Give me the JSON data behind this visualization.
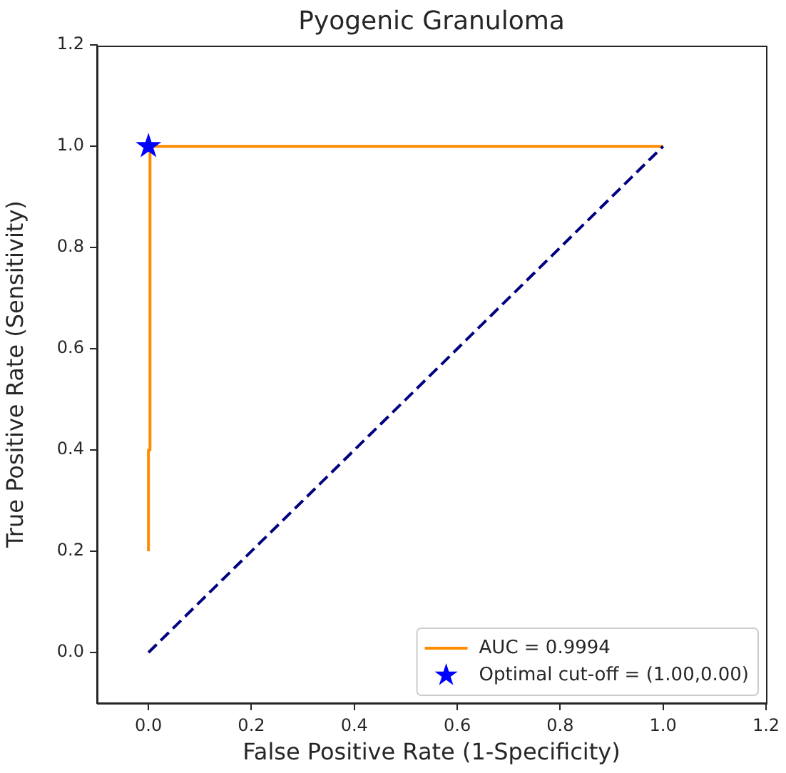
{
  "chart_data": {
    "type": "line",
    "title": "Pyogenic Granuloma",
    "xlabel": "False Positive Rate (1-Specificity)",
    "ylabel": "True Positive Rate (Sensitivity)",
    "series": [
      {
        "name": "AUC = 0.9994",
        "color": "#ff8c00",
        "x": [
          0,
          0,
          0.003,
          0.003,
          1
        ],
        "values": [
          0.2,
          0.4,
          0.4,
          1,
          1
        ],
        "marker": "none",
        "line_style": "solid"
      },
      {
        "color": "#000080",
        "x": [
          0,
          1
        ],
        "values": [
          0,
          1
        ],
        "marker": "none",
        "line_style": "dashed"
      },
      {
        "name": "Optimal cut-off = (1.00,0.00)",
        "type": "scatter",
        "color": "#0000ff",
        "x": [
          0
        ],
        "values": [
          1
        ],
        "marker": "star"
      }
    ],
    "xlim": [
      -0.1,
      1.2
    ],
    "xticks": [
      {
        "value": 0,
        "label": "0.0"
      },
      0.2,
      0.4,
      0.6,
      0.8,
      {
        "value": 1,
        "label": "1.0"
      },
      1.2
    ],
    "ylim": [
      -0.1,
      1.2
    ],
    "yticks": [
      {
        "value": 0,
        "label": "0.0"
      },
      0.2,
      0.4,
      0.6,
      0.8,
      {
        "value": 1,
        "label": "1.0"
      },
      1.2
    ],
    "grid": false,
    "legend": "bottom right"
  }
}
